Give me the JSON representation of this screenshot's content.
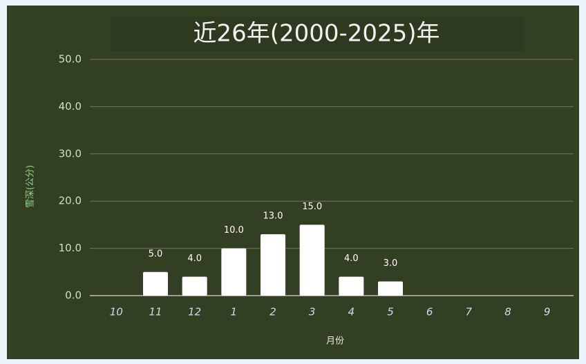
{
  "chart_data": {
    "type": "bar",
    "title": "近26年(2000-2025)年",
    "x_label": "月份",
    "y_label": "雪深(公分)",
    "categories": [
      "10",
      "11",
      "12",
      "1",
      "2",
      "3",
      "4",
      "5",
      "6",
      "7",
      "8",
      "9"
    ],
    "values": [
      null,
      5,
      4,
      10,
      13,
      15,
      4,
      3,
      null,
      null,
      null,
      null
    ],
    "value_labels": [
      null,
      "5.0",
      "4.0",
      "10.0",
      "13.0",
      "15.0",
      "4.0",
      "3.0",
      null,
      null,
      null,
      null
    ],
    "color": "#ffffff",
    "ylim": [
      0,
      50
    ],
    "yticks": [
      {
        "value": 0,
        "label": "0.0"
      },
      {
        "value": 10,
        "label": "10.0"
      },
      {
        "value": 20,
        "label": "20.0"
      },
      {
        "value": 30,
        "label": "30.0"
      },
      {
        "value": 40,
        "label": "40.0"
      },
      {
        "value": 50,
        "label": "50.0"
      }
    ],
    "grid": true
  }
}
